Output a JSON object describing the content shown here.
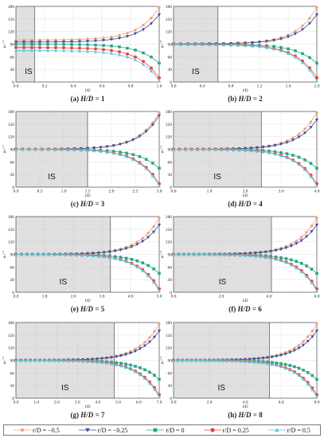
{
  "colors": {
    "r_m05": "#f0a07a",
    "r_m025": "#3d4f9a",
    "r_0": "#22a884",
    "r_025": "#e8473f",
    "r_05": "#5ec8e0",
    "shade": "#e0e0e0"
  },
  "legend": [
    {
      "label": "r/D = −0.5",
      "color": "#f0a07a",
      "marker": "diamond"
    },
    {
      "label": "r/D = −0.25",
      "color": "#3d4f9a",
      "marker": "triangle-down"
    },
    {
      "label": "r/D = 0",
      "color": "#22a884",
      "marker": "square"
    },
    {
      "label": "r/D = 0.25",
      "color": "#e8473f",
      "marker": "circle"
    },
    {
      "label": "r/D = 0.5",
      "color": "#5ec8e0",
      "marker": "triangle-up"
    }
  ],
  "chart_data": [
    {
      "type": "line",
      "letter": "(a)",
      "title_italic": "H/D",
      "title_rest": " = 1",
      "H": 1,
      "is_end": 0.13,
      "region_label": "IS",
      "xlabel": "l/D",
      "ylabel": "φ / °",
      "xlim": [
        0,
        1.0
      ],
      "ylim": [
        0,
        180
      ],
      "xticks": [
        "0.0",
        "0.2",
        "0.4",
        "0.6",
        "0.8",
        "1.0"
      ],
      "yticks": [
        "0",
        "30",
        "60",
        "90",
        "120",
        "150",
        "180"
      ],
      "series_names": [
        "r/D = −0.5",
        "r/D = −0.25",
        "r/D = 0",
        "r/D = 0.25",
        "r/D = 0.5"
      ],
      "series_final": [
        177,
        160,
        45,
        10,
        3
      ],
      "series_start_offset": [
        10,
        5,
        0,
        -8,
        -15
      ]
    },
    {
      "type": "line",
      "letter": "(b)",
      "title_italic": "H/D",
      "title_rest": " = 2",
      "H": 2,
      "is_end": 0.62,
      "region_label": "IS",
      "xlabel": "l/D",
      "ylabel": "φ / °",
      "xlim": [
        0,
        2.0
      ],
      "ylim": [
        0,
        180
      ],
      "xticks": [
        "0.0",
        "0.4",
        "0.8",
        "1.2",
        "1.6",
        "2.0"
      ],
      "yticks": [
        "0",
        "30",
        "60",
        "90",
        "120",
        "150",
        "180"
      ],
      "series_names": [
        "r/D = −0.5",
        "r/D = −0.25",
        "r/D = 0",
        "r/D = 0.25",
        "r/D = 0.5"
      ],
      "series_final": [
        177,
        160,
        45,
        10,
        3
      ],
      "series_start_offset": [
        1,
        0.5,
        0,
        -0.5,
        -1
      ]
    },
    {
      "type": "line",
      "letter": "(c)",
      "title_italic": "H/D",
      "title_rest": " = 3",
      "H": 3,
      "is_end": 1.5,
      "region_label": "IS",
      "xlabel": "l/D",
      "ylabel": "φ / °",
      "xlim": [
        0,
        3.0
      ],
      "ylim": [
        0,
        180
      ],
      "xticks": [
        "0.0",
        "0.5",
        "1.0",
        "1.5",
        "2.0",
        "2.5",
        "3.0"
      ],
      "yticks": [
        "0",
        "30",
        "60",
        "90",
        "120",
        "150",
        "180"
      ],
      "series_names": [
        "r/D = −0.5",
        "r/D = −0.25",
        "r/D = 0",
        "r/D = 0.25",
        "r/D = 0.5"
      ],
      "series_final": [
        177,
        170,
        45,
        8,
        3
      ],
      "series_start_offset": [
        0,
        0,
        0,
        0,
        0
      ]
    },
    {
      "type": "line",
      "letter": "(d)",
      "title_italic": "H/D",
      "title_rest": " = 4",
      "H": 4,
      "is_end": 2.45,
      "region_label": "IS",
      "xlabel": "l/D",
      "ylabel": "φ / °",
      "xlim": [
        0,
        4.0
      ],
      "ylim": [
        0,
        180
      ],
      "xticks": [
        "0.0",
        "1.0",
        "2.0",
        "3.0",
        "4.0"
      ],
      "yticks": [
        "0",
        "30",
        "60",
        "90",
        "120",
        "150",
        "180"
      ],
      "series_names": [
        "r/D = −0.5",
        "r/D = −0.25",
        "r/D = 0",
        "r/D = 0.25",
        "r/D = 0.5"
      ],
      "series_final": [
        177,
        160,
        45,
        8,
        3
      ],
      "series_start_offset": [
        0,
        0,
        0,
        0,
        0
      ]
    },
    {
      "type": "line",
      "letter": "(e)",
      "title_italic": "H/D",
      "title_rest": " = 5",
      "H": 5,
      "is_end": 3.3,
      "region_label": "IS",
      "xlabel": "l/D",
      "ylabel": "φ / °",
      "xlim": [
        0,
        5.0
      ],
      "ylim": [
        0,
        180
      ],
      "xticks": [
        "0.0",
        "1.0",
        "2.0",
        "3.0",
        "4.0",
        "5.0"
      ],
      "yticks": [
        "0",
        "30",
        "60",
        "90",
        "120",
        "150",
        "180"
      ],
      "series_names": [
        "r/D = −0.5",
        "r/D = −0.25",
        "r/D = 0",
        "r/D = 0.25",
        "r/D = 0.5"
      ],
      "series_final": [
        177,
        160,
        45,
        8,
        3
      ],
      "series_start_offset": [
        0,
        0,
        0,
        0,
        0
      ]
    },
    {
      "type": "line",
      "letter": "(f)",
      "title_italic": "H/D",
      "title_rest": " = 6",
      "H": 6,
      "is_end": 4.1,
      "region_label": "IS",
      "xlabel": "l/D",
      "ylabel": "φ / °",
      "xlim": [
        0,
        6.0
      ],
      "ylim": [
        0,
        180
      ],
      "xticks": [
        "0.0",
        "2.0",
        "4.0",
        "6.0"
      ],
      "yticks": [
        "0",
        "30",
        "60",
        "90",
        "120",
        "150",
        "180"
      ],
      "series_names": [
        "r/D = −0.5",
        "r/D = −0.25",
        "r/D = 0",
        "r/D = 0.25",
        "r/D = 0.5"
      ],
      "series_final": [
        177,
        160,
        45,
        8,
        3
      ],
      "series_start_offset": [
        0,
        0,
        0,
        0,
        0
      ]
    },
    {
      "type": "line",
      "letter": "(g)",
      "title_italic": "H/D",
      "title_rest": " = 7",
      "H": 7,
      "is_end": 4.8,
      "region_label": "IS",
      "xlabel": "l/D",
      "ylabel": "φ / °",
      "xlim": [
        0,
        7.0
      ],
      "ylim": [
        0,
        180
      ],
      "xticks": [
        "0.0",
        "1.0",
        "2.0",
        "3.0",
        "4.0",
        "5.0",
        "6.0",
        "7.0"
      ],
      "yticks": [
        "0",
        "30",
        "60",
        "90",
        "120",
        "150",
        "180"
      ],
      "series_names": [
        "r/D = −0.5",
        "r/D = −0.25",
        "r/D = 0",
        "r/D = 0.25",
        "r/D = 0.5"
      ],
      "series_final": [
        177,
        160,
        45,
        8,
        3
      ],
      "series_start_offset": [
        0,
        0,
        0,
        0,
        0
      ]
    },
    {
      "type": "line",
      "letter": "(h)",
      "title_italic": "H/D",
      "title_rest": " = 8",
      "H": 8,
      "is_end": 5.35,
      "region_label": "IS",
      "xlabel": "l/D",
      "ylabel": "φ / °",
      "xlim": [
        0,
        8.0
      ],
      "ylim": [
        0,
        180
      ],
      "xticks": [
        "0.0",
        "2.0",
        "4.0",
        "6.0",
        "8.0"
      ],
      "yticks": [
        "0",
        "30",
        "60",
        "90",
        "120",
        "150",
        "180"
      ],
      "series_names": [
        "r/D = −0.5",
        "r/D = −0.25",
        "r/D = 0",
        "r/D = 0.25",
        "r/D = 0.5"
      ],
      "series_final": [
        177,
        160,
        45,
        8,
        3
      ],
      "series_start_offset": [
        0,
        0,
        0,
        0,
        0
      ]
    }
  ]
}
